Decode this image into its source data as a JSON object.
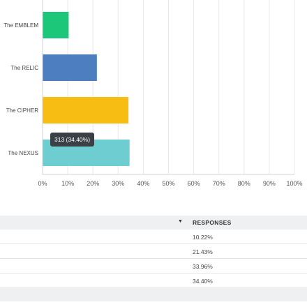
{
  "chart_data": {
    "type": "bar",
    "orientation": "horizontal",
    "categories": [
      "The EMBLEM",
      "The RELIC",
      "The CIPHER",
      "The NEXUS"
    ],
    "values": [
      10.22,
      21.43,
      33.96,
      34.4
    ],
    "xlim": [
      0,
      100
    ],
    "x_ticks": [
      "0%",
      "10%",
      "20%",
      "30%",
      "40%",
      "50%",
      "60%",
      "70%",
      "80%",
      "90%",
      "100%"
    ],
    "colors": [
      "#1dc77a",
      "#4d7ebf",
      "#f7bd12",
      "#6dcdd1"
    ],
    "grid": true,
    "tooltip": "313 (34.40%)"
  },
  "table": {
    "sort_icon": "sort-down-icon",
    "header": "RESPONSES",
    "rows": [
      "10.22%",
      "21.43%",
      "33.96%",
      "34.40%"
    ]
  }
}
